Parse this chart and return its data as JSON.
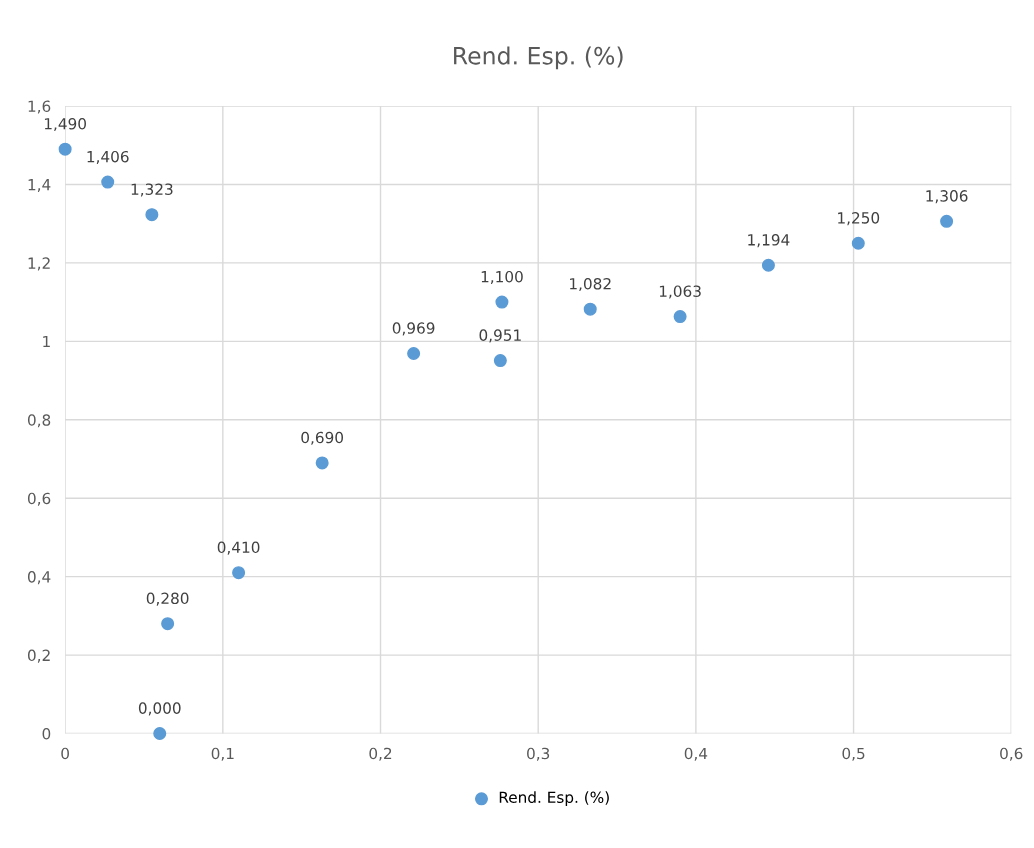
{
  "chart_data": {
    "type": "scatter",
    "title": "Rend. Esp. (%)",
    "series": [
      {
        "name": "Rend. Esp. (%)",
        "color": "#5b9bd5",
        "x": [
          0.0,
          0.027,
          0.055,
          0.06,
          0.065,
          0.11,
          0.163,
          0.221,
          0.277,
          0.276,
          0.333,
          0.39,
          0.446,
          0.503,
          0.559
        ],
        "values": [
          1.49,
          1.406,
          1.323,
          0.0,
          0.28,
          0.41,
          0.69,
          0.969,
          1.1,
          0.951,
          1.082,
          1.063,
          1.194,
          1.25,
          1.306
        ],
        "value_labels": [
          "1,490",
          "1,406",
          "1,323",
          "0,000",
          "0,280",
          "0,410",
          "0,690",
          "0,969",
          "1,100",
          "0,951",
          "1,082",
          "1,063",
          "1,194",
          "1,250",
          "1,306"
        ]
      }
    ],
    "xlim": [
      0,
      0.6
    ],
    "xticks": [
      0,
      {
        "value": 0.1,
        "label": "0,1"
      },
      {
        "value": 0.2,
        "label": "0,2"
      },
      {
        "value": 0.3,
        "label": "0,3"
      },
      {
        "value": 0.4,
        "label": "0,4"
      },
      {
        "value": 0.5,
        "label": "0,5"
      },
      {
        "value": 0.6,
        "label": "0,6"
      }
    ],
    "ylim": [
      0,
      1.6
    ],
    "yticks": [
      0,
      {
        "value": 0.2,
        "label": "0,2"
      },
      {
        "value": 0.4,
        "label": "0,4"
      },
      {
        "value": 0.6,
        "label": "0,6"
      },
      {
        "value": 0.8,
        "label": "0,8"
      },
      1,
      {
        "value": 1.2,
        "label": "1,2"
      },
      {
        "value": 1.4,
        "label": "1,4"
      },
      {
        "value": 1.6,
        "label": "1,6"
      }
    ],
    "grid": true,
    "legend": "bottom",
    "marker": "circle"
  }
}
